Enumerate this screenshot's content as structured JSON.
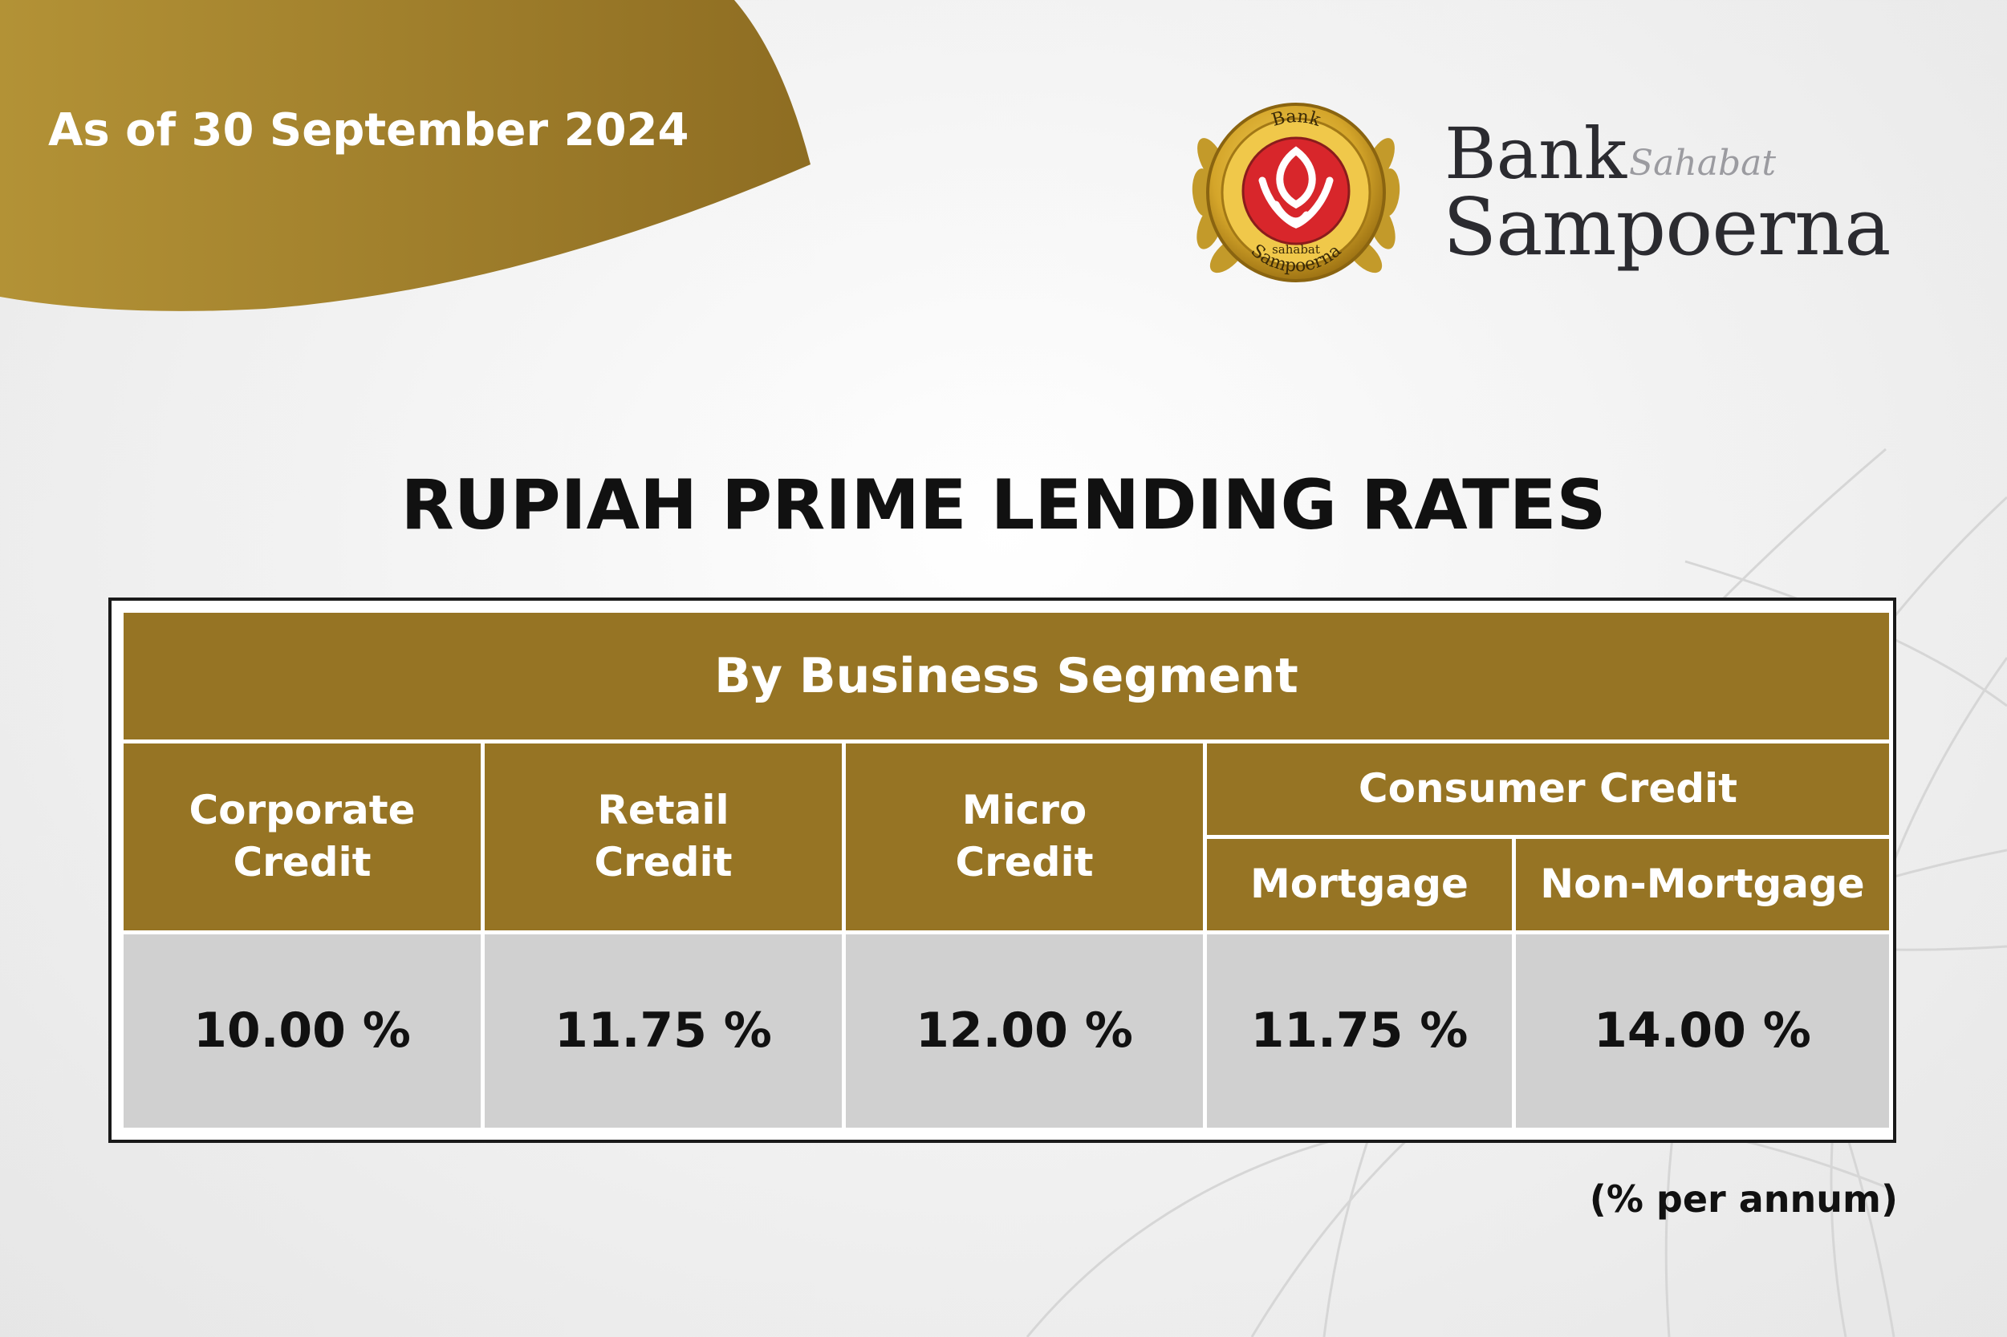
{
  "banner": {
    "date_text": "As of 30 September 2024"
  },
  "logo": {
    "emblem_top_text": "Bank",
    "emblem_small_text": "sahabat",
    "emblem_bottom_text": "Sampoerna",
    "word_bank": "Bank",
    "word_sahabat": "Sahabat",
    "word_sampoerna": "Sampoerna"
  },
  "title": "RUPIAH PRIME LENDING RATES",
  "table": {
    "header": "By Business Segment",
    "columns": [
      {
        "line1": "Corporate",
        "line2": "Credit"
      },
      {
        "line1": "Retail",
        "line2": "Credit"
      },
      {
        "line1": "Micro",
        "line2": "Credit"
      }
    ],
    "consumer_header": "Consumer Credit",
    "consumer_sub": [
      "Mortgage",
      "Non-Mortgage"
    ],
    "values": [
      "10.00 %",
      "11.75 %",
      "12.00 %",
      "11.75 %",
      "14.00 %"
    ]
  },
  "unit_note": "(% per annum)",
  "colors": {
    "gold": "#967424",
    "banner_gold": "#9c7a28",
    "value_cell": "#d0d0d0",
    "emblem_red": "#d8262b",
    "emblem_gold": "#d7a82a"
  }
}
